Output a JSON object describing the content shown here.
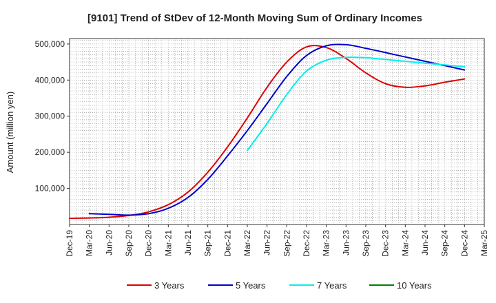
{
  "chart_data": {
    "type": "line",
    "title": "[9101]  Trend of StDev of 12-Month Moving Sum of Ordinary Incomes",
    "xlabel": "",
    "ylabel": "Amount (million yen)",
    "ylim": [
      0,
      515000
    ],
    "yticks": [
      100000,
      200000,
      300000,
      400000,
      500000
    ],
    "ytick_labels": [
      "100,000",
      "200,000",
      "300,000",
      "400,000",
      "500,000"
    ],
    "categories": [
      "Dec-19",
      "Mar-20",
      "Jun-20",
      "Sep-20",
      "Dec-20",
      "Mar-21",
      "Jun-21",
      "Sep-21",
      "Dec-21",
      "Mar-22",
      "Jun-22",
      "Sep-22",
      "Dec-22",
      "Mar-23",
      "Jun-23",
      "Sep-23",
      "Dec-23",
      "Mar-24",
      "Jun-24",
      "Sep-24",
      "Dec-24",
      "Mar-25"
    ],
    "grid": true,
    "legend_position": "bottom",
    "series": [
      {
        "name": "3 Years",
        "color": "#dd0000",
        "values": [
          17000,
          18000,
          20000,
          25000,
          35000,
          55000,
          90000,
          145000,
          215000,
          295000,
          380000,
          450000,
          492000,
          490000,
          460000,
          420000,
          390000,
          380000,
          384000,
          394000,
          403000,
          null
        ]
      },
      {
        "name": "5 Years",
        "color": "#0000cc",
        "values": [
          null,
          30000,
          28000,
          26000,
          30000,
          45000,
          75000,
          125000,
          190000,
          260000,
          335000,
          410000,
          468000,
          495000,
          498000,
          488000,
          476000,
          464000,
          452000,
          440000,
          428000,
          null
        ]
      },
      {
        "name": "7 Years",
        "color": "#00eeee",
        "values": [
          null,
          null,
          null,
          null,
          null,
          null,
          null,
          null,
          null,
          205000,
          280000,
          360000,
          425000,
          455000,
          463000,
          462000,
          457000,
          452000,
          447000,
          442000,
          437000,
          null
        ]
      },
      {
        "name": "10 Years",
        "color": "#008000",
        "values": [
          null,
          null,
          null,
          null,
          null,
          null,
          null,
          null,
          null,
          null,
          null,
          null,
          null,
          null,
          null,
          null,
          null,
          null,
          null,
          null,
          null,
          null
        ]
      }
    ]
  }
}
